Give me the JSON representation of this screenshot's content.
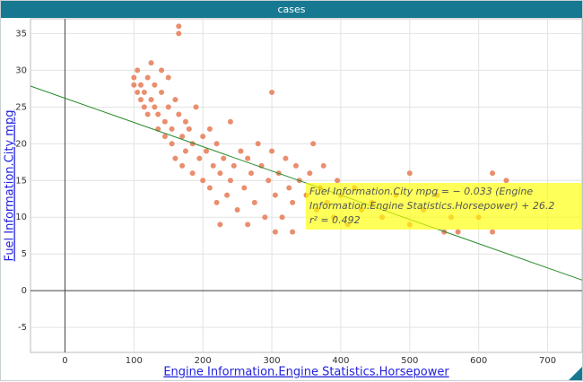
{
  "window_title": "cases",
  "chart_data": {
    "type": "scatter",
    "x_label": "Engine Information.Engine Statistics.Horsepower",
    "y_label": "Fuel Information.City mpg",
    "xlim": [
      -50,
      750
    ],
    "ylim": [
      -8.4,
      37
    ],
    "xticks": [
      0,
      100,
      200,
      300,
      400,
      500,
      600,
      700
    ],
    "yticks": [
      -5,
      0,
      5,
      10,
      15,
      20,
      25,
      30,
      35
    ],
    "grid": true,
    "color": "#e8825e",
    "x": [
      100,
      100,
      105,
      105,
      110,
      110,
      115,
      115,
      120,
      120,
      125,
      125,
      130,
      130,
      135,
      135,
      140,
      140,
      145,
      145,
      150,
      150,
      155,
      155,
      160,
      160,
      165,
      165,
      165,
      170,
      170,
      175,
      175,
      180,
      185,
      185,
      190,
      195,
      200,
      200,
      205,
      210,
      210,
      215,
      220,
      220,
      225,
      225,
      230,
      235,
      240,
      240,
      245,
      250,
      255,
      260,
      265,
      265,
      270,
      275,
      280,
      285,
      290,
      295,
      300,
      300,
      305,
      305,
      310,
      315,
      320,
      325,
      330,
      330,
      335,
      340,
      350,
      355,
      360,
      365,
      370,
      375,
      380,
      390,
      395,
      400,
      410,
      420,
      430,
      445,
      460,
      480,
      500,
      500,
      520,
      540,
      550,
      560,
      570,
      600,
      620,
      620,
      640
    ],
    "values": [
      28,
      29,
      27,
      30,
      26,
      28,
      25,
      27,
      24,
      29,
      31,
      26,
      25,
      28,
      22,
      24,
      30,
      27,
      21,
      23,
      29,
      25,
      20,
      22,
      26,
      18,
      36,
      35,
      24,
      21,
      17,
      23,
      19,
      22,
      16,
      20,
      25,
      18,
      21,
      15,
      19,
      22,
      14,
      17,
      12,
      20,
      9,
      16,
      18,
      13,
      23,
      15,
      17,
      11,
      19,
      14,
      9,
      18,
      16,
      12,
      20,
      17,
      10,
      15,
      27,
      19,
      13,
      8,
      16,
      10,
      18,
      14,
      8,
      12,
      17,
      15,
      13,
      16,
      20,
      11,
      14,
      17,
      12,
      10,
      15,
      13,
      9,
      14,
      11,
      12,
      10,
      13,
      16,
      9,
      11,
      13,
      8,
      10,
      8,
      10,
      16,
      8,
      15
    ],
    "trendline": {
      "slope": -0.033,
      "intercept": 26.2,
      "color": "#2a8a2a",
      "equation": "Fuel Information.City mpg = − 0.033 (Engine Information.Engine Statistics.Horsepower) + 26.2",
      "r2_label": "r² = 0.492"
    }
  }
}
